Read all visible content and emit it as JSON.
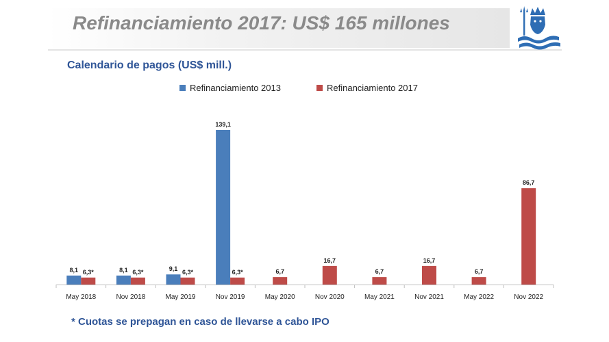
{
  "header": {
    "title": "Refinanciamiento 2017: US$ 165 millones"
  },
  "subtitle": "Calendario de pagos (US$ mill.)",
  "footnote": "* Cuotas se prepagan en caso de llevarse a cabo IPO",
  "colors": {
    "series_2013": "#4a7ebb",
    "series_2017": "#be4b48",
    "accent_blue": "#2f5597"
  },
  "chart_data": {
    "type": "bar",
    "title": "Calendario de pagos (US$ mill.)",
    "xlabel": "",
    "ylabel": "",
    "grid": false,
    "legend_position": "top",
    "categories": [
      "May 2018",
      "Nov 2018",
      "May 2019",
      "Nov 2019",
      "May 2020",
      "Nov 2020",
      "May 2021",
      "Nov 2021",
      "May 2022",
      "Nov 2022"
    ],
    "series": [
      {
        "name": "Refinanciamiento 2013",
        "values": [
          8.1,
          8.1,
          9.1,
          139.1,
          null,
          null,
          null,
          null,
          null,
          null
        ],
        "labels": [
          "8,1",
          "8,1",
          "9,1",
          "139,1",
          "",
          "",
          "",
          "",
          "",
          ""
        ]
      },
      {
        "name": "Refinanciamiento 2017",
        "values": [
          6.3,
          6.3,
          6.3,
          6.3,
          6.7,
          16.7,
          6.7,
          16.7,
          6.7,
          86.7
        ],
        "labels": [
          "6,3*",
          "6,3*",
          "6,3*",
          "6,3*",
          "6,7",
          "16,7",
          "6,7",
          "16,7",
          "6,7",
          "86,7"
        ]
      }
    ]
  }
}
